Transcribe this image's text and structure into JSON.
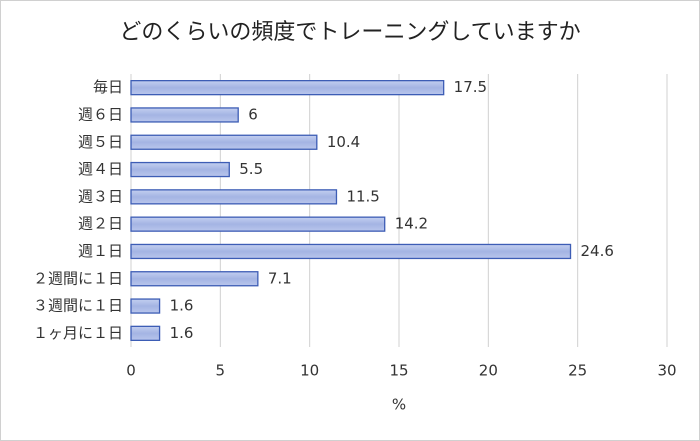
{
  "chart_data": {
    "type": "bar",
    "orientation": "horizontal",
    "title": "どのくらいの頻度でトレーニングしていますか",
    "categories": [
      "毎日",
      "週６日",
      "週５日",
      "週４日",
      "週３日",
      "週２日",
      "週１日",
      "２週間に１日",
      "３週間に１日",
      "１ヶ月に１日"
    ],
    "values": [
      17.5,
      6,
      10.4,
      5.5,
      11.5,
      14.2,
      24.6,
      7.1,
      1.6,
      1.6
    ],
    "color": "#a9b8e6",
    "edge_color": "#3d5db5",
    "xlim": [
      0,
      30
    ],
    "xticks": [
      0,
      5,
      10,
      15,
      20,
      25,
      30
    ],
    "xlabel": "%",
    "grid": true
  }
}
